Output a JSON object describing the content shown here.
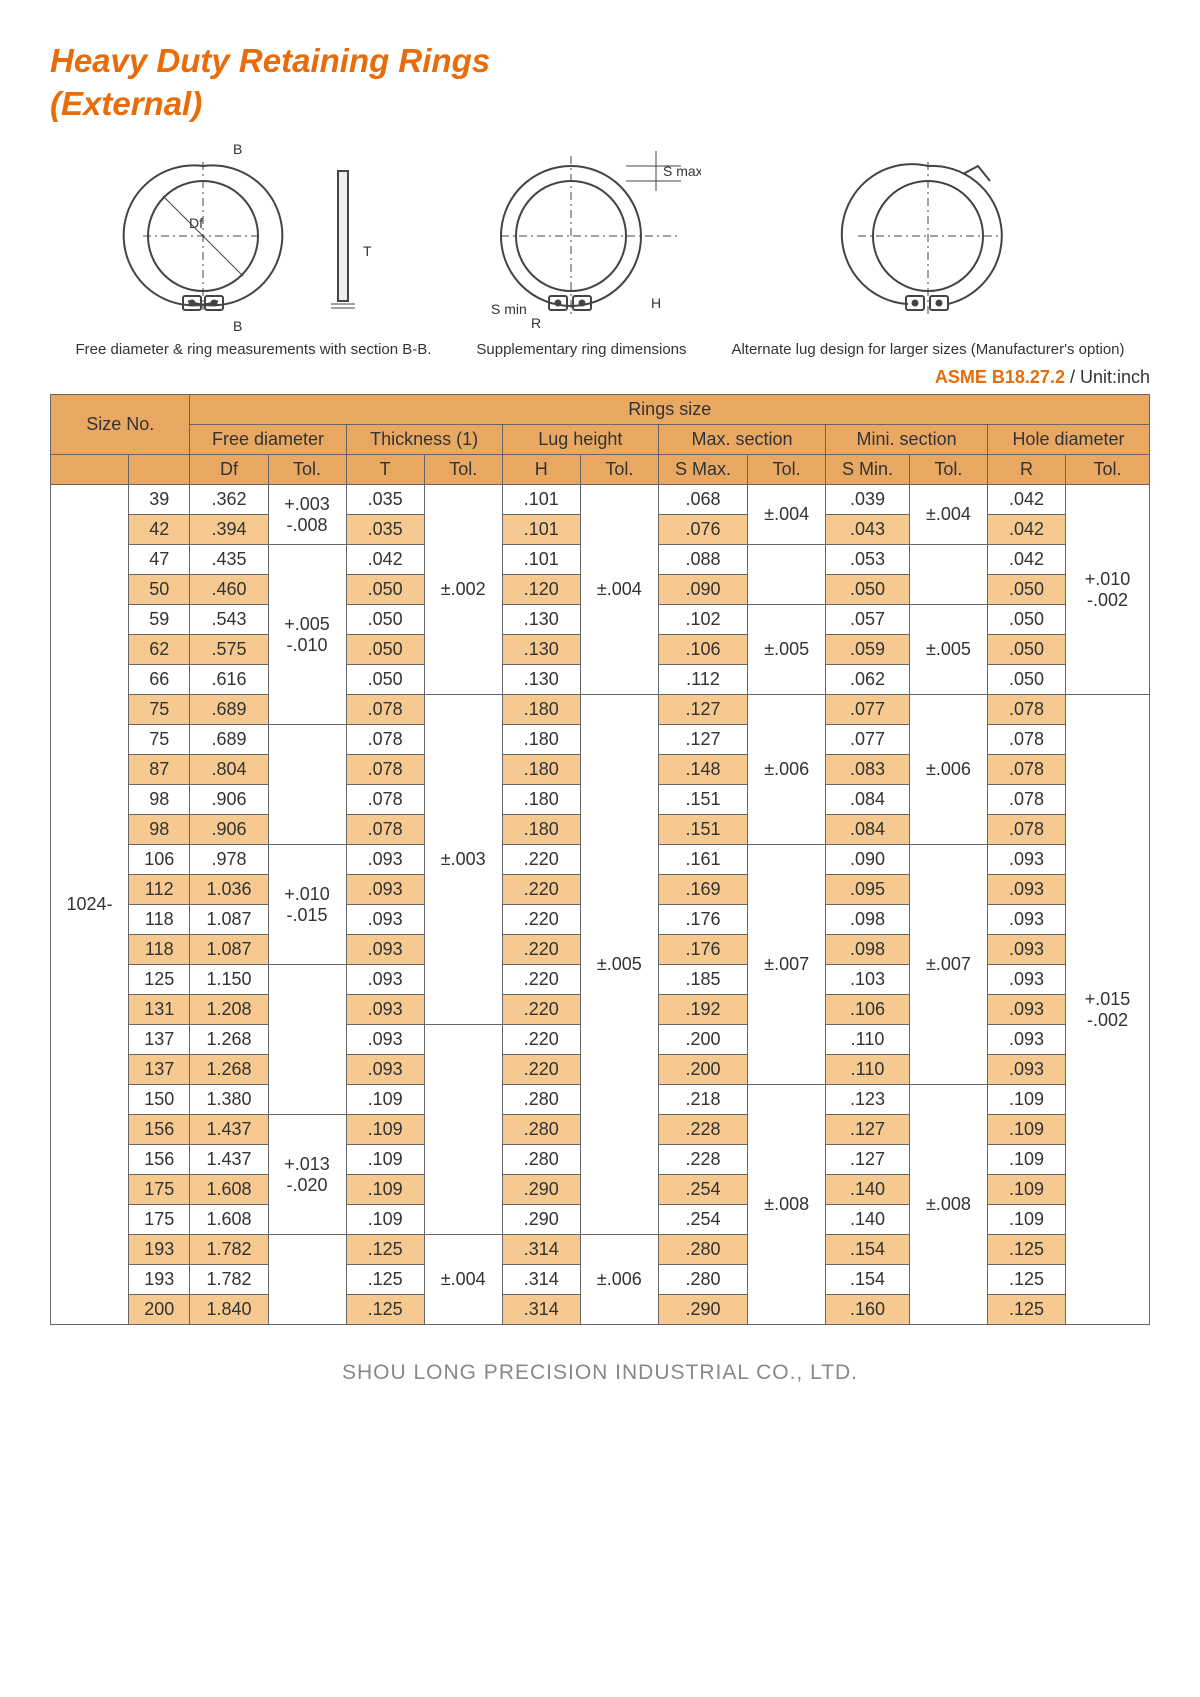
{
  "title_line1": "Heavy Duty Retaining Rings",
  "title_line2": "(External)",
  "captions": {
    "c1": "Free diameter & ring measurements\nwith section B-B.",
    "c2": "Supplementary\nring dimensions",
    "c3": "Alternate lug design\nfor larger sizes\n(Manufacturer's option)"
  },
  "diagram_labels": {
    "B": "B",
    "Df": "Df",
    "T": "T",
    "Smin": "S min",
    "R": "R",
    "H": "H",
    "Smax": "S max."
  },
  "spec": {
    "std": "ASME B18.27.2",
    "unit": " / Unit:inch"
  },
  "footer": "SHOU LONG PRECISION INDUSTRIAL CO., LTD.",
  "table": {
    "header_top": "Rings size",
    "size_no": "Size No.",
    "groups": [
      "Free diameter",
      "Thickness (1)",
      "Lug height",
      "Max. section",
      "Mini. section",
      "Hole diameter"
    ],
    "sub": [
      "Df",
      "Tol.",
      "T",
      "Tol.",
      "H",
      "Tol.",
      "S Max.",
      "Tol.",
      "S Min.",
      "Tol.",
      "R",
      "Tol."
    ],
    "size_prefix": "1024-",
    "rows": [
      {
        "sz": "39",
        "df": ".362",
        "t": ".035",
        "h": ".101",
        "smax": ".068",
        "smin": ".039",
        "r": ".042"
      },
      {
        "sz": "42",
        "df": ".394",
        "t": ".035",
        "h": ".101",
        "smax": ".076",
        "smin": ".043",
        "r": ".042"
      },
      {
        "sz": "47",
        "df": ".435",
        "t": ".042",
        "h": ".101",
        "smax": ".088",
        "smin": ".053",
        "r": ".042"
      },
      {
        "sz": "50",
        "df": ".460",
        "t": ".050",
        "h": ".120",
        "smax": ".090",
        "smin": ".050",
        "r": ".050"
      },
      {
        "sz": "59",
        "df": ".543",
        "t": ".050",
        "h": ".130",
        "smax": ".102",
        "smin": ".057",
        "r": ".050"
      },
      {
        "sz": "62",
        "df": ".575",
        "t": ".050",
        "h": ".130",
        "smax": ".106",
        "smin": ".059",
        "r": ".050"
      },
      {
        "sz": "66",
        "df": ".616",
        "t": ".050",
        "h": ".130",
        "smax": ".112",
        "smin": ".062",
        "r": ".050"
      },
      {
        "sz": "75",
        "df": ".689",
        "t": ".078",
        "h": ".180",
        "smax": ".127",
        "smin": ".077",
        "r": ".078"
      },
      {
        "sz": "75",
        "df": ".689",
        "t": ".078",
        "h": ".180",
        "smax": ".127",
        "smin": ".077",
        "r": ".078"
      },
      {
        "sz": "87",
        "df": ".804",
        "t": ".078",
        "h": ".180",
        "smax": ".148",
        "smin": ".083",
        "r": ".078"
      },
      {
        "sz": "98",
        "df": ".906",
        "t": ".078",
        "h": ".180",
        "smax": ".151",
        "smin": ".084",
        "r": ".078"
      },
      {
        "sz": "98",
        "df": ".906",
        "t": ".078",
        "h": ".180",
        "smax": ".151",
        "smin": ".084",
        "r": ".078"
      },
      {
        "sz": "106",
        "df": ".978",
        "t": ".093",
        "h": ".220",
        "smax": ".161",
        "smin": ".090",
        "r": ".093"
      },
      {
        "sz": "112",
        "df": "1.036",
        "t": ".093",
        "h": ".220",
        "smax": ".169",
        "smin": ".095",
        "r": ".093"
      },
      {
        "sz": "118",
        "df": "1.087",
        "t": ".093",
        "h": ".220",
        "smax": ".176",
        "smin": ".098",
        "r": ".093"
      },
      {
        "sz": "118",
        "df": "1.087",
        "t": ".093",
        "h": ".220",
        "smax": ".176",
        "smin": ".098",
        "r": ".093"
      },
      {
        "sz": "125",
        "df": "1.150",
        "t": ".093",
        "h": ".220",
        "smax": ".185",
        "smin": ".103",
        "r": ".093"
      },
      {
        "sz": "131",
        "df": "1.208",
        "t": ".093",
        "h": ".220",
        "smax": ".192",
        "smin": ".106",
        "r": ".093"
      },
      {
        "sz": "137",
        "df": "1.268",
        "t": ".093",
        "h": ".220",
        "smax": ".200",
        "smin": ".110",
        "r": ".093"
      },
      {
        "sz": "137",
        "df": "1.268",
        "t": ".093",
        "h": ".220",
        "smax": ".200",
        "smin": ".110",
        "r": ".093"
      },
      {
        "sz": "150",
        "df": "1.380",
        "t": ".109",
        "h": ".280",
        "smax": ".218",
        "smin": ".123",
        "r": ".109"
      },
      {
        "sz": "156",
        "df": "1.437",
        "t": ".109",
        "h": ".280",
        "smax": ".228",
        "smin": ".127",
        "r": ".109"
      },
      {
        "sz": "156",
        "df": "1.437",
        "t": ".109",
        "h": ".280",
        "smax": ".228",
        "smin": ".127",
        "r": ".109"
      },
      {
        "sz": "175",
        "df": "1.608",
        "t": ".109",
        "h": ".290",
        "smax": ".254",
        "smin": ".140",
        "r": ".109"
      },
      {
        "sz": "175",
        "df": "1.608",
        "t": ".109",
        "h": ".290",
        "smax": ".254",
        "smin": ".140",
        "r": ".109"
      },
      {
        "sz": "193",
        "df": "1.782",
        "t": ".125",
        "h": ".314",
        "smax": ".280",
        "smin": ".154",
        "r": ".125"
      },
      {
        "sz": "193",
        "df": "1.782",
        "t": ".125",
        "h": ".314",
        "smax": ".280",
        "smin": ".154",
        "r": ".125"
      },
      {
        "sz": "200",
        "df": "1.840",
        "t": ".125",
        "h": ".314",
        "smax": ".290",
        "smin": ".160",
        "r": ".125"
      }
    ],
    "tolerances": {
      "df": [
        {
          "start": 0,
          "span": 2,
          "up": "+.003",
          "dn": "-.008"
        },
        {
          "start": 2,
          "span": 6,
          "up": "+.005",
          "dn": "-.010"
        },
        {
          "start": 8,
          "span": 4,
          "up": "",
          "dn": ""
        },
        {
          "start": 12,
          "span": 4,
          "up": "+.010",
          "dn": "-.015"
        },
        {
          "start": 16,
          "span": 5,
          "up": "",
          "dn": ""
        },
        {
          "start": 21,
          "span": 4,
          "up": "+.013",
          "dn": "-.020"
        },
        {
          "start": 25,
          "span": 3,
          "up": "",
          "dn": ""
        }
      ],
      "t": [
        {
          "start": 0,
          "span": 7,
          "val": "±.002"
        },
        {
          "start": 7,
          "span": 11,
          "val": "±.003"
        },
        {
          "start": 18,
          "span": 7,
          "val": ""
        },
        {
          "start": 25,
          "span": 3,
          "val": "±.004"
        }
      ],
      "h": [
        {
          "start": 0,
          "span": 7,
          "val": "±.004"
        },
        {
          "start": 7,
          "span": 18,
          "val": "±.005"
        },
        {
          "start": 25,
          "span": 3,
          "val": "±.006"
        }
      ],
      "smax": [
        {
          "start": 0,
          "span": 2,
          "val": "±.004"
        },
        {
          "start": 2,
          "span": 2,
          "val": ""
        },
        {
          "start": 4,
          "span": 3,
          "val": "±.005"
        },
        {
          "start": 7,
          "span": 5,
          "val": "±.006"
        },
        {
          "start": 12,
          "span": 8,
          "val": "±.007"
        },
        {
          "start": 20,
          "span": 8,
          "val": "±.008"
        }
      ],
      "smin": [
        {
          "start": 0,
          "span": 2,
          "val": "±.004"
        },
        {
          "start": 2,
          "span": 2,
          "val": ""
        },
        {
          "start": 4,
          "span": 3,
          "val": "±.005"
        },
        {
          "start": 7,
          "span": 5,
          "val": "±.006"
        },
        {
          "start": 12,
          "span": 8,
          "val": "±.007"
        },
        {
          "start": 20,
          "span": 8,
          "val": "±.008"
        }
      ],
      "r": [
        {
          "start": 0,
          "span": 7,
          "up": "+.010",
          "dn": "-.002"
        },
        {
          "start": 7,
          "span": 21,
          "up": "+.015",
          "dn": "-.002"
        }
      ]
    }
  },
  "colors": {
    "orange": "#e86c0a",
    "header_bg": "#e8a862",
    "alt_bg": "#f5c98f",
    "border": "#666"
  }
}
